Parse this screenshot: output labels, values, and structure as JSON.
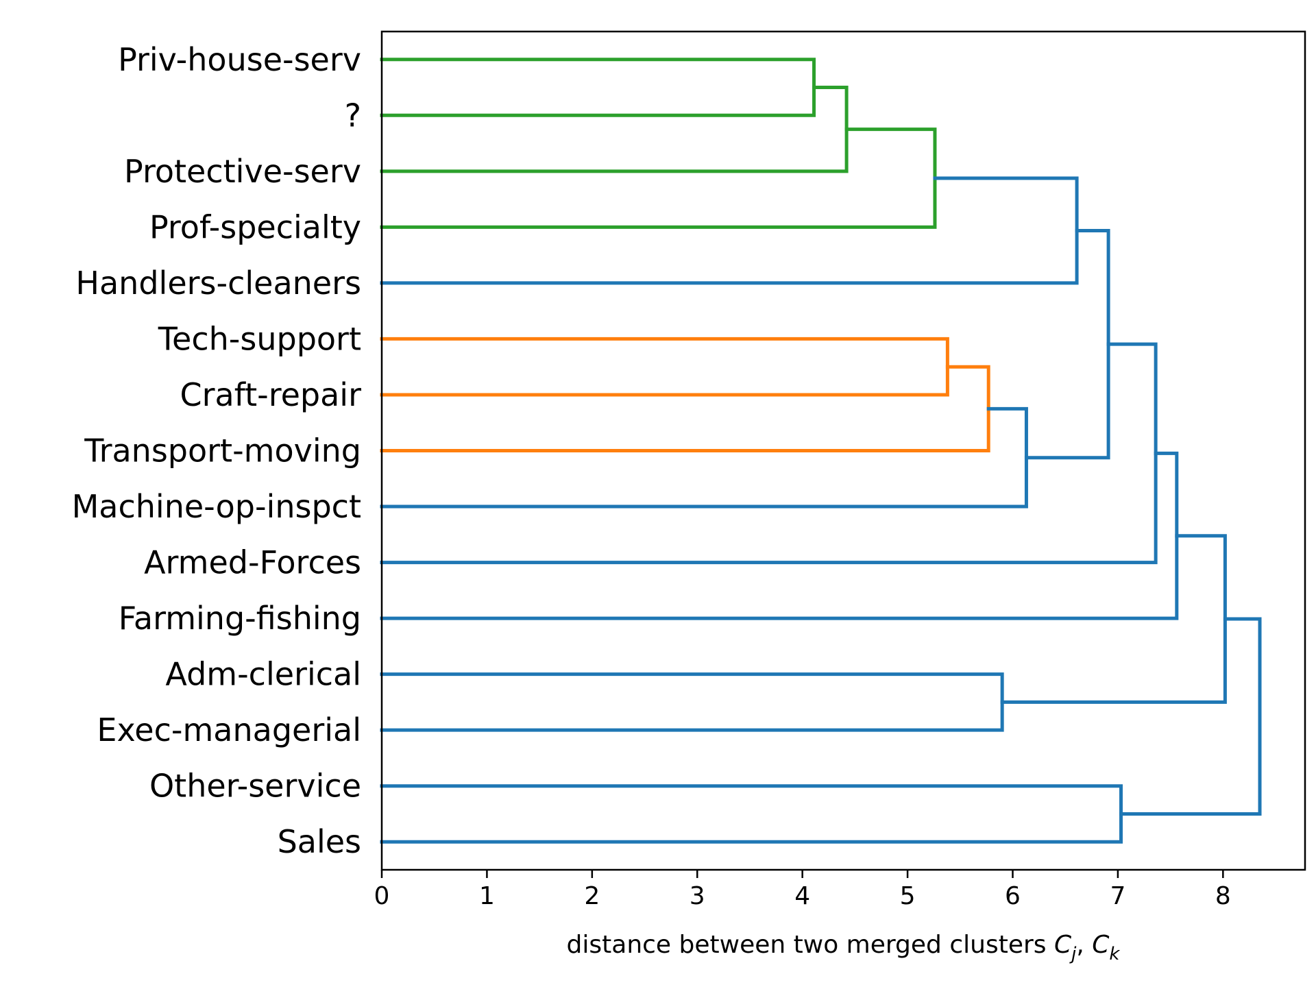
{
  "chart_data": {
    "type": "dendrogram",
    "orientation": "horizontal-left-leaves",
    "xlabel": "distance between two merged clusters",
    "xlabel_math": {
      "base1": "C",
      "sub1": "j",
      "sep": ", ",
      "base2": "C",
      "sub2": "k"
    },
    "xlim": [
      0,
      8.78
    ],
    "x_ticks": [
      "0",
      "1",
      "2",
      "3",
      "4",
      "5",
      "6",
      "7",
      "8"
    ],
    "grid": false,
    "leaves": [
      "Priv-house-serv",
      "?",
      "Protective-serv",
      "Prof-specialty",
      "Handlers-cleaners",
      "Tech-support",
      "Craft-repair",
      "Transport-moving",
      "Machine-op-inspct",
      "Armed-Forces",
      "Farming-fishing",
      "Adm-clerical",
      "Exec-managerial",
      "Other-service",
      "Sales"
    ],
    "colors": {
      "green": "#2ca02c",
      "orange": "#ff7f0e",
      "blue": "#1f77b4"
    },
    "merges": [
      {
        "a": "L0",
        "b": "L1",
        "distance": 4.11,
        "color": "green"
      },
      {
        "a": "M0",
        "b": "L2",
        "distance": 4.42,
        "color": "green"
      },
      {
        "a": "M1",
        "b": "L3",
        "distance": 5.26,
        "color": "green"
      },
      {
        "a": "L5",
        "b": "L6",
        "distance": 5.38,
        "color": "orange"
      },
      {
        "a": "M3",
        "b": "L7",
        "distance": 5.77,
        "color": "orange"
      },
      {
        "a": "L11",
        "b": "L12",
        "distance": 5.9,
        "color": "blue"
      },
      {
        "a": "M4",
        "b": "L8",
        "distance": 6.13,
        "color": "blue"
      },
      {
        "a": "M2",
        "b": "L4",
        "distance": 6.61,
        "color": "blue"
      },
      {
        "a": "M7",
        "b": "M6",
        "distance": 6.91,
        "color": "blue"
      },
      {
        "a": "L13",
        "b": "L14",
        "distance": 7.03,
        "color": "blue"
      },
      {
        "a": "M8",
        "b": "L9",
        "distance": 7.36,
        "color": "blue"
      },
      {
        "a": "M10",
        "b": "L10",
        "distance": 7.56,
        "color": "blue"
      },
      {
        "a": "M11",
        "b": "M5",
        "distance": 8.02,
        "color": "blue"
      },
      {
        "a": "M12",
        "b": "M9",
        "distance": 8.35,
        "color": "blue"
      }
    ]
  }
}
